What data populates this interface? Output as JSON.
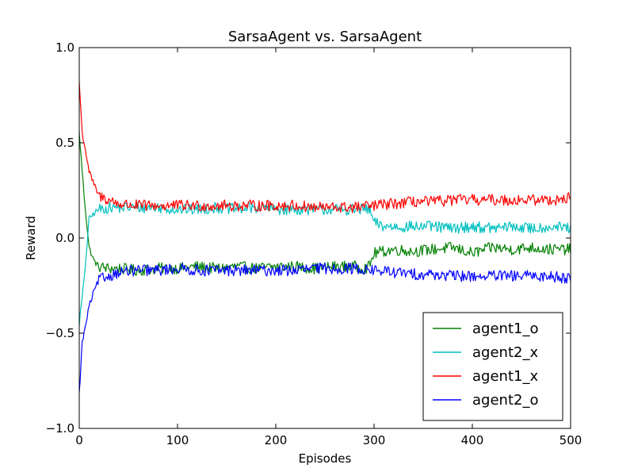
{
  "chart_data": {
    "type": "line",
    "title": "SarsaAgent vs. SarsaAgent",
    "xlabel": "Episodes",
    "ylabel": "Reward",
    "xlim": [
      0,
      500
    ],
    "ylim": [
      -1.0,
      1.0
    ],
    "xticks": [
      0,
      100,
      200,
      300,
      400,
      500
    ],
    "xtick_labels": [
      "0",
      "100",
      "200",
      "300",
      "400",
      "500"
    ],
    "yticks": [
      -1.0,
      -0.5,
      0.0,
      0.5,
      1.0
    ],
    "ytick_labels": [
      "−1.0",
      "−0.5",
      "0.0",
      "0.5",
      "1.0"
    ],
    "grid": false,
    "legend_position": "lower-right",
    "series": [
      {
        "name": "agent1_o",
        "color": "#008000",
        "x": [
          0,
          5,
          10,
          15,
          20,
          30,
          40,
          60,
          80,
          100,
          120,
          140,
          160,
          180,
          200,
          220,
          240,
          260,
          280,
          290,
          295,
          300,
          310,
          320,
          340,
          360,
          380,
          400,
          420,
          440,
          460,
          480,
          500
        ],
        "y": [
          0.55,
          0.22,
          -0.05,
          -0.12,
          -0.15,
          -0.16,
          -0.16,
          -0.17,
          -0.16,
          -0.16,
          -0.15,
          -0.16,
          -0.15,
          -0.16,
          -0.15,
          -0.15,
          -0.16,
          -0.15,
          -0.15,
          -0.16,
          -0.15,
          -0.08,
          -0.07,
          -0.06,
          -0.07,
          -0.06,
          -0.05,
          -0.08,
          -0.05,
          -0.06,
          -0.05,
          -0.06,
          -0.06
        ]
      },
      {
        "name": "agent2_x",
        "color": "#00bfbf",
        "x": [
          0,
          5,
          10,
          15,
          20,
          30,
          40,
          60,
          80,
          100,
          120,
          140,
          160,
          180,
          200,
          220,
          240,
          260,
          280,
          290,
          295,
          300,
          310,
          320,
          340,
          360,
          380,
          400,
          420,
          440,
          460,
          480,
          500
        ],
        "y": [
          -0.45,
          -0.22,
          0.1,
          0.13,
          0.15,
          0.16,
          0.16,
          0.16,
          0.16,
          0.15,
          0.15,
          0.16,
          0.15,
          0.16,
          0.15,
          0.15,
          0.15,
          0.15,
          0.15,
          0.15,
          0.15,
          0.08,
          0.06,
          0.06,
          0.06,
          0.06,
          0.05,
          0.06,
          0.05,
          0.06,
          0.05,
          0.06,
          0.05
        ]
      },
      {
        "name": "agent1_x",
        "color": "#ff0000",
        "x": [
          0,
          3,
          5,
          10,
          15,
          20,
          30,
          40,
          60,
          80,
          100,
          120,
          140,
          160,
          180,
          200,
          220,
          240,
          260,
          280,
          300,
          320,
          340,
          360,
          380,
          400,
          420,
          440,
          460,
          480,
          500
        ],
        "y": [
          0.82,
          0.55,
          0.5,
          0.35,
          0.28,
          0.22,
          0.2,
          0.18,
          0.17,
          0.17,
          0.17,
          0.17,
          0.17,
          0.17,
          0.17,
          0.17,
          0.17,
          0.16,
          0.16,
          0.16,
          0.17,
          0.18,
          0.19,
          0.19,
          0.2,
          0.2,
          0.2,
          0.2,
          0.2,
          0.2,
          0.21
        ]
      },
      {
        "name": "agent2_o",
        "color": "#0000ff",
        "x": [
          0,
          3,
          5,
          10,
          15,
          20,
          30,
          40,
          60,
          80,
          100,
          120,
          140,
          160,
          180,
          200,
          220,
          240,
          260,
          280,
          300,
          320,
          340,
          360,
          380,
          400,
          420,
          440,
          460,
          480,
          500
        ],
        "y": [
          -0.82,
          -0.55,
          -0.5,
          -0.36,
          -0.28,
          -0.22,
          -0.2,
          -0.18,
          -0.17,
          -0.17,
          -0.16,
          -0.17,
          -0.17,
          -0.17,
          -0.17,
          -0.17,
          -0.17,
          -0.16,
          -0.16,
          -0.16,
          -0.17,
          -0.18,
          -0.19,
          -0.19,
          -0.2,
          -0.2,
          -0.2,
          -0.2,
          -0.2,
          -0.2,
          -0.21
        ]
      }
    ]
  }
}
